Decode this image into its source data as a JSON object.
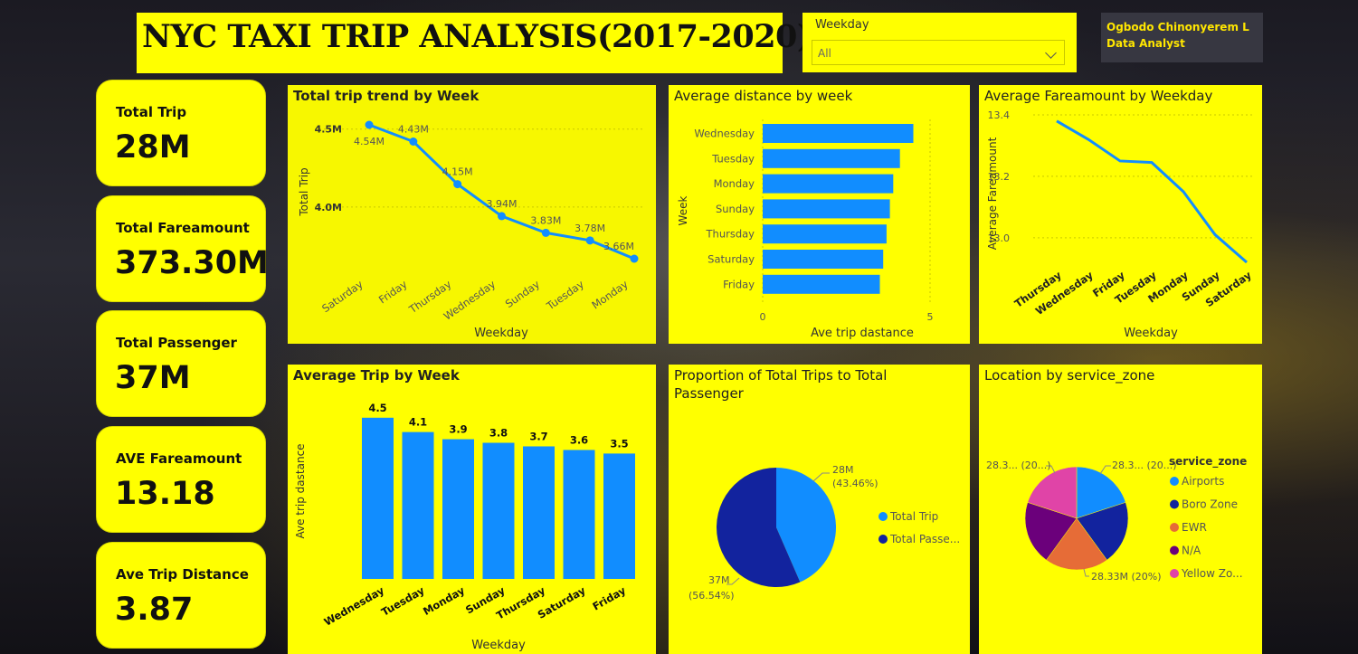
{
  "header": {
    "title": "NYC TAXI TRIP ANALYSIS(2017-2020)"
  },
  "slicer": {
    "label": "Weekday",
    "value": "All"
  },
  "author": {
    "name": "Ogbodo Chinonyerem L",
    "role": "Data Analyst"
  },
  "kpis": [
    {
      "label": "Total Trip",
      "value": "28M"
    },
    {
      "label": "Total Fareamount",
      "value": "373.30M"
    },
    {
      "label": "Total Passenger",
      "value": "37M"
    },
    {
      "label": "AVE Fareamount",
      "value": "13.18"
    },
    {
      "label": "Ave Trip Distance",
      "value": "3.87"
    }
  ],
  "colors": {
    "panel": "#ffff00",
    "series_blue": "#118dff",
    "dark_blue": "#12239e",
    "orange": "#e66c37",
    "purple": "#6b007b",
    "pink": "#e044a7"
  },
  "chart_data": [
    {
      "id": "trend",
      "type": "line",
      "title": "Total trip trend by Week",
      "xlabel": "Weekday",
      "ylabel": "Total Trip",
      "categories": [
        "Saturday",
        "Friday",
        "Thursday",
        "Wednesday",
        "Sunday",
        "Tuesday",
        "Monday"
      ],
      "values": [
        4.54,
        4.43,
        4.15,
        3.94,
        3.83,
        3.78,
        3.66
      ],
      "data_labels": [
        "4.54M",
        "4.43M",
        "4.15M",
        "3.94M",
        "3.83M",
        "3.78M",
        "3.66M"
      ],
      "yticks": [
        "4.0M",
        "4.5M"
      ],
      "ytick_values": [
        4.0,
        4.5
      ],
      "ylim": [
        3.6,
        4.6
      ]
    },
    {
      "id": "distance",
      "type": "bar",
      "orientation": "horizontal",
      "title": "Average distance by week",
      "xlabel": "Ave trip dastance",
      "ylabel": "Week",
      "categories": [
        "Wednesday",
        "Tuesday",
        "Monday",
        "Sunday",
        "Thursday",
        "Saturday",
        "Friday"
      ],
      "values": [
        4.5,
        4.1,
        3.9,
        3.8,
        3.7,
        3.6,
        3.5
      ],
      "xticks": [
        "0",
        "5"
      ],
      "xtick_values": [
        0,
        5
      ],
      "xlim": [
        0,
        5
      ]
    },
    {
      "id": "fare",
      "type": "line",
      "title": "Average Fareamount by Weekday",
      "xlabel": "Weekday",
      "ylabel": "Average Fareamount",
      "categories": [
        "Thursday",
        "Wednesday",
        "Friday",
        "Tuesday",
        "Monday",
        "Sunday",
        "Saturday"
      ],
      "values": [
        13.38,
        13.32,
        13.25,
        13.245,
        13.15,
        13.01,
        12.92
      ],
      "yticks": [
        "13.0",
        "13.2",
        "13.4"
      ],
      "ytick_values": [
        13.0,
        13.2,
        13.4
      ],
      "ylim": [
        12.92,
        13.4
      ]
    },
    {
      "id": "avgtrip",
      "type": "bar",
      "title": "Average Trip by Week",
      "xlabel": "Weekday",
      "ylabel": "Ave trip dastance",
      "categories": [
        "Wednesday",
        "Tuesday",
        "Monday",
        "Sunday",
        "Thursday",
        "Saturday",
        "Friday"
      ],
      "values": [
        4.5,
        4.1,
        3.9,
        3.8,
        3.7,
        3.6,
        3.5
      ],
      "data_labels": [
        "4.5",
        "4.1",
        "3.9",
        "3.8",
        "3.7",
        "3.6",
        "3.5"
      ],
      "ylim": [
        0,
        5
      ]
    },
    {
      "id": "proportion",
      "type": "pie",
      "title": "Proportion of Total Trips to Total Passenger",
      "title_lines": [
        "Proportion of Total Trips to Total",
        "Passenger"
      ],
      "slices": [
        {
          "name": "Total Trip",
          "legend": "Total Trip",
          "value": 43.46,
          "label1": "28M",
          "label2": "(43.46%)",
          "color": "#118dff"
        },
        {
          "name": "Total Passenger",
          "legend": "Total Passe...",
          "value": 56.54,
          "label1": "37M",
          "label2": "(56.54%)",
          "color": "#12239e"
        }
      ]
    },
    {
      "id": "zone",
      "type": "pie",
      "title": "Location by service_zone",
      "legend_title": "service_zone",
      "slices": [
        {
          "name": "Airports",
          "legend": "Airports",
          "value": 20,
          "color": "#118dff"
        },
        {
          "name": "Boro Zone",
          "legend": "Boro Zone",
          "value": 20,
          "color": "#12239e"
        },
        {
          "name": "EWR",
          "legend": "EWR",
          "value": 20,
          "color": "#e66c37"
        },
        {
          "name": "N/A",
          "legend": "N/A",
          "value": 20,
          "color": "#6b007b"
        },
        {
          "name": "Yellow Zone",
          "legend": "Yellow Zo...",
          "value": 20,
          "color": "#e044a7"
        }
      ],
      "data_labels": [
        "28.3... (20...)",
        "28.3... (20...)",
        "28.33M (20%)"
      ]
    }
  ]
}
